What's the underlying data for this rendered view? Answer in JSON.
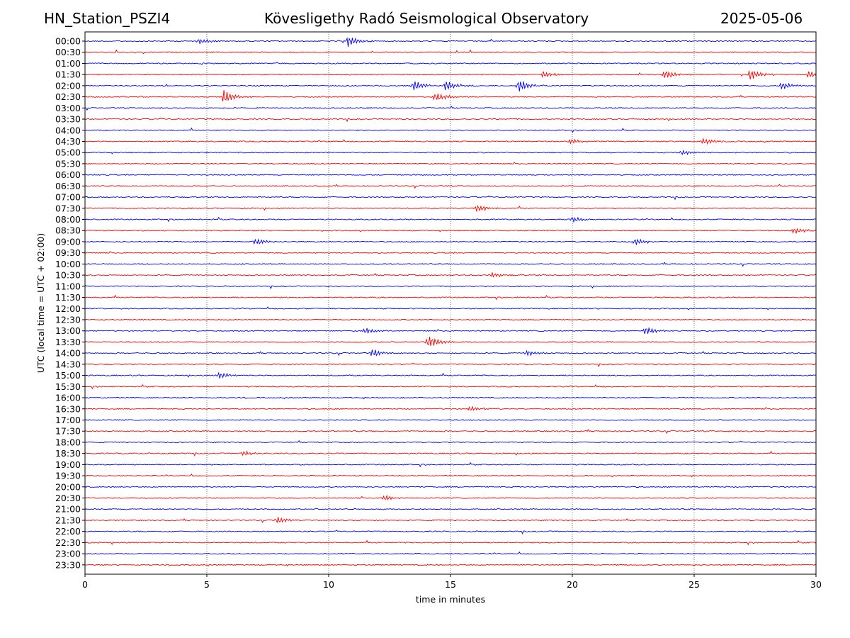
{
  "header": {
    "station": "HN_Station_PSZI4",
    "observatory": "Kövesligethy Radó Seismological Observatory",
    "date": "2025-05-06"
  },
  "chart_data": {
    "type": "line",
    "title": "Kövesligethy Radó Seismological Observatory",
    "xlabel": "time in minutes",
    "ylabel": "UTC (local time = UTC + 02:00)",
    "xlim": [
      0,
      30
    ],
    "x_ticks": [
      0,
      5,
      10,
      15,
      20,
      25,
      30
    ],
    "x_gridlines": [
      5,
      10,
      15,
      20,
      25
    ],
    "grid": "vertical dotted",
    "row_labels": [
      "00:00",
      "00:30",
      "01:00",
      "01:30",
      "02:00",
      "02:30",
      "03:00",
      "03:30",
      "04:00",
      "04:30",
      "05:00",
      "05:30",
      "06:00",
      "06:30",
      "07:00",
      "07:30",
      "08:00",
      "08:30",
      "09:00",
      "09:30",
      "10:00",
      "10:30",
      "11:00",
      "11:30",
      "12:00",
      "12:30",
      "13:00",
      "13:30",
      "14:00",
      "14:30",
      "15:00",
      "15:30",
      "16:00",
      "16:30",
      "17:00",
      "17:30",
      "18:00",
      "18:30",
      "19:00",
      "19:30",
      "20:00",
      "20:30",
      "21:00",
      "21:30",
      "22:00",
      "22:30",
      "23:00",
      "23:30"
    ],
    "trace_colors": [
      "#0000ff",
      "#ff0000"
    ],
    "events": [
      {
        "row": "00:00",
        "t": 10.8,
        "amp": 0.8
      },
      {
        "row": "00:00",
        "t": 4.7,
        "amp": 0.4
      },
      {
        "row": "01:30",
        "t": 18.8,
        "amp": 0.5
      },
      {
        "row": "01:30",
        "t": 23.8,
        "amp": 0.7
      },
      {
        "row": "01:30",
        "t": 27.3,
        "amp": 0.9
      },
      {
        "row": "01:30",
        "t": 29.7,
        "amp": 0.6
      },
      {
        "row": "02:00",
        "t": 13.5,
        "amp": 0.8
      },
      {
        "row": "02:00",
        "t": 14.8,
        "amp": 0.8
      },
      {
        "row": "02:00",
        "t": 17.8,
        "amp": 1.0
      },
      {
        "row": "02:00",
        "t": 28.6,
        "amp": 0.6
      },
      {
        "row": "02:30",
        "t": 5.7,
        "amp": 1.1
      },
      {
        "row": "02:30",
        "t": 14.4,
        "amp": 0.7
      },
      {
        "row": "04:30",
        "t": 19.9,
        "amp": 0.4
      },
      {
        "row": "04:30",
        "t": 25.4,
        "amp": 0.5
      },
      {
        "row": "05:00",
        "t": 24.5,
        "amp": 0.4
      },
      {
        "row": "07:30",
        "t": 16.1,
        "amp": 0.6
      },
      {
        "row": "08:00",
        "t": 20.0,
        "amp": 0.4
      },
      {
        "row": "08:30",
        "t": 29.1,
        "amp": 0.5
      },
      {
        "row": "09:00",
        "t": 7.0,
        "amp": 0.5
      },
      {
        "row": "09:00",
        "t": 22.6,
        "amp": 0.6
      },
      {
        "row": "10:30",
        "t": 16.7,
        "amp": 0.4
      },
      {
        "row": "13:00",
        "t": 11.5,
        "amp": 0.5
      },
      {
        "row": "13:00",
        "t": 23.0,
        "amp": 0.7
      },
      {
        "row": "13:30",
        "t": 14.1,
        "amp": 1.0
      },
      {
        "row": "14:00",
        "t": 11.8,
        "amp": 0.6
      },
      {
        "row": "14:00",
        "t": 18.1,
        "amp": 0.5
      },
      {
        "row": "15:00",
        "t": 5.5,
        "amp": 0.5
      },
      {
        "row": "16:30",
        "t": 15.8,
        "amp": 0.4
      },
      {
        "row": "18:30",
        "t": 6.5,
        "amp": 0.4
      },
      {
        "row": "20:30",
        "t": 12.3,
        "amp": 0.4
      },
      {
        "row": "21:30",
        "t": 7.9,
        "amp": 0.5
      }
    ]
  }
}
